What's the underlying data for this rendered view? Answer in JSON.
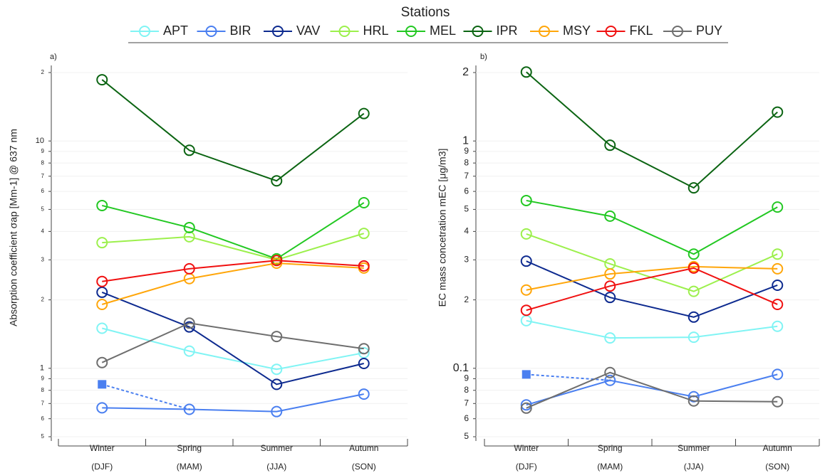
{
  "chart_data": [
    {
      "type": "line",
      "panel_label": "a)",
      "legend": {
        "title": "Stations",
        "position": "top"
      },
      "ylabel": "Absorption coefficient  σap [Mm-1] @ 637 nm",
      "categories": [
        "Winter",
        "Spring",
        "Summer",
        "Autumn"
      ],
      "category_sublabels": [
        "(DJF)",
        "(MAM)",
        "(JJA)",
        "(SON)"
      ],
      "log_scale": true,
      "grid": true,
      "ylim": [
        0.5,
        20
      ],
      "yticks": [
        {
          "value": 0.5,
          "label": "5"
        },
        {
          "value": 0.6,
          "label": "6"
        },
        {
          "value": 0.7,
          "label": "7"
        },
        {
          "value": 0.8,
          "label": "8"
        },
        {
          "value": 0.9,
          "label": "9"
        },
        1,
        2,
        3,
        4,
        5,
        6,
        7,
        8,
        9,
        10,
        {
          "value": 20,
          "label": "2"
        }
      ],
      "series": [
        {
          "name": "APT",
          "color": "#80f4f4",
          "values": [
            1.5,
            1.19,
            0.99,
            1.17
          ]
        },
        {
          "name": "BIR",
          "color": "#4a7ff0",
          "values": [
            0.67,
            0.66,
            0.645,
            0.77
          ],
          "extra": {
            "values": [
              0.85,
              0.66,
              null,
              null
            ],
            "marker": "square",
            "dashed": true
          }
        },
        {
          "name": "VAV",
          "color": "#0d2a8f",
          "values": [
            2.16,
            1.52,
            0.85,
            1.05
          ]
        },
        {
          "name": "HRL",
          "color": "#9cf04c",
          "values": [
            3.57,
            3.79,
            3.0,
            3.92
          ]
        },
        {
          "name": "MEL",
          "color": "#22c822",
          "values": [
            5.2,
            4.16,
            3.03,
            5.35
          ]
        },
        {
          "name": "IPR",
          "color": "#0b6412",
          "values": [
            18.6,
            9.1,
            6.68,
            13.2
          ]
        },
        {
          "name": "MSY",
          "color": "#ffa60a",
          "values": [
            1.91,
            2.48,
            2.9,
            2.76
          ]
        },
        {
          "name": "FKL",
          "color": "#f01010",
          "values": [
            2.41,
            2.74,
            2.98,
            2.82
          ]
        },
        {
          "name": "PUY",
          "color": "#6e6e6e",
          "values": [
            1.06,
            1.58,
            1.38,
            1.22
          ]
        }
      ]
    },
    {
      "type": "line",
      "panel_label": "b)",
      "ylabel": "EC mass concetration  mEC [μg/m3]",
      "categories": [
        "Winter",
        "Spring",
        "Summer",
        "Autumn"
      ],
      "category_sublabels": [
        "(DJF)",
        "(MAM)",
        "(JJA)",
        "(SON)"
      ],
      "log_scale": true,
      "grid": true,
      "ylim": [
        0.05,
        2
      ],
      "yticks": [
        {
          "value": 0.05,
          "label": "5"
        },
        {
          "value": 0.06,
          "label": "6"
        },
        {
          "value": 0.07,
          "label": "7"
        },
        {
          "value": 0.08,
          "label": "8"
        },
        {
          "value": 0.09,
          "label": "9"
        },
        0.1,
        {
          "value": 0.2,
          "label": "2"
        },
        {
          "value": 0.3,
          "label": "3"
        },
        {
          "value": 0.4,
          "label": "4"
        },
        {
          "value": 0.5,
          "label": "5"
        },
        {
          "value": 0.6,
          "label": "6"
        },
        {
          "value": 0.7,
          "label": "7"
        },
        {
          "value": 0.8,
          "label": "8"
        },
        {
          "value": 0.9,
          "label": "9"
        },
        1,
        2
      ],
      "series": [
        {
          "name": "APT",
          "color": "#80f4f4",
          "values": [
            0.162,
            0.136,
            0.137,
            0.153
          ]
        },
        {
          "name": "BIR",
          "color": "#4a7ff0",
          "values": [
            0.069,
            0.0885,
            0.075,
            0.094
          ],
          "extra": {
            "values": [
              0.094,
              0.0885,
              null,
              null
            ],
            "marker": "square",
            "dashed": true
          }
        },
        {
          "name": "VAV",
          "color": "#0d2a8f",
          "values": [
            0.296,
            0.205,
            0.168,
            0.232
          ]
        },
        {
          "name": "HRL",
          "color": "#9cf04c",
          "values": [
            0.39,
            0.288,
            0.218,
            0.318
          ]
        },
        {
          "name": "MEL",
          "color": "#22c822",
          "values": [
            0.547,
            0.467,
            0.318,
            0.512
          ]
        },
        {
          "name": "IPR",
          "color": "#0b6412",
          "values": [
            2.01,
            0.958,
            0.622,
            1.34
          ]
        },
        {
          "name": "MSY",
          "color": "#ffa60a",
          "values": [
            0.221,
            0.26,
            0.28,
            0.274
          ]
        },
        {
          "name": "FKL",
          "color": "#f01010",
          "values": [
            0.18,
            0.23,
            0.276,
            0.191
          ]
        },
        {
          "name": "PUY",
          "color": "#6e6e6e",
          "values": [
            0.0668,
            0.0958,
            0.0718,
            0.0713
          ]
        }
      ]
    }
  ]
}
